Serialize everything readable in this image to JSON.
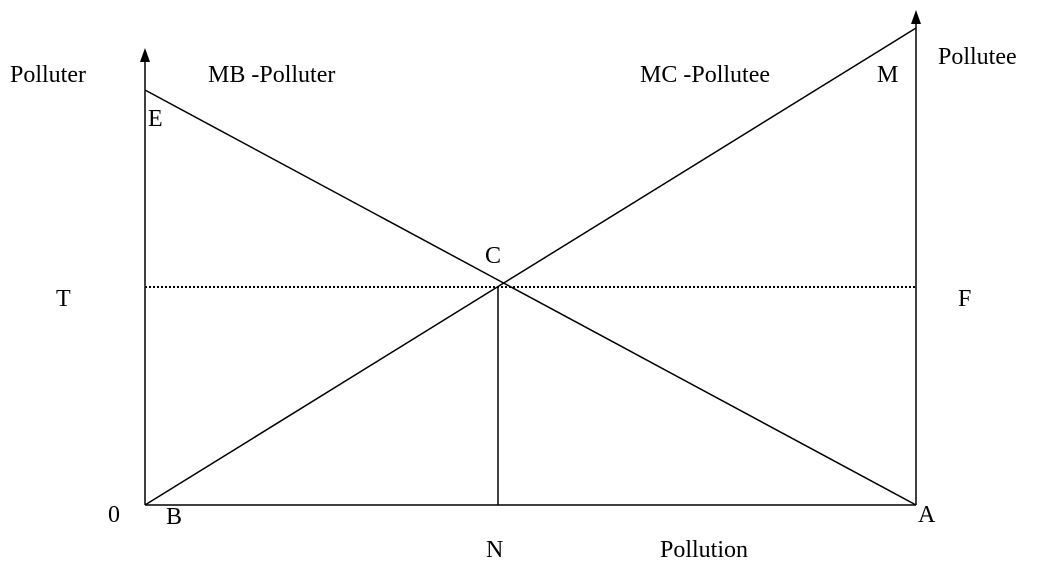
{
  "axes": {
    "left_label": "Polluter",
    "right_label": "Pollutee",
    "x_label": "Pollution"
  },
  "curves": {
    "mb": "MB -Polluter",
    "mc": "MC -Pollutee"
  },
  "points": {
    "origin": "0",
    "e": "E",
    "m": "M",
    "c": "C",
    "t": "T",
    "f": "F",
    "b": "B",
    "a": "A",
    "n": "N"
  }
}
